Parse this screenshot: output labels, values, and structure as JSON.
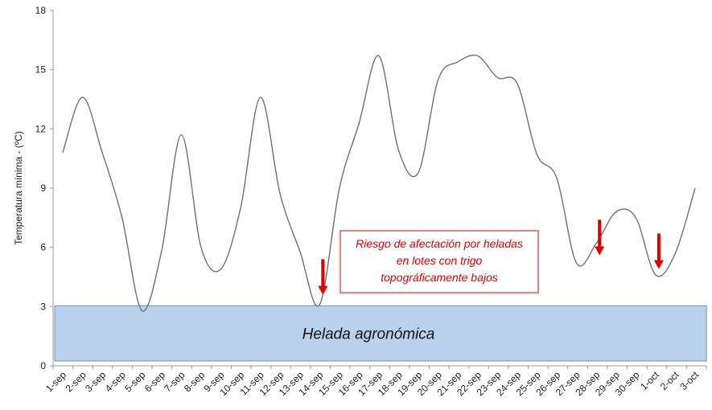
{
  "chart_data": {
    "type": "line",
    "title": "",
    "xlabel": "",
    "ylabel": "Temperatura mínima - (ºC)",
    "ylim": [
      0,
      18
    ],
    "yticks": [
      0,
      3,
      6,
      9,
      12,
      15,
      18
    ],
    "grid": false,
    "categories": [
      "1-sep",
      "2-sep",
      "3-sep",
      "4-sep",
      "5-sep",
      "6-sep",
      "7-sep",
      "8-sep",
      "9-sep",
      "10-sep",
      "11-sep",
      "12-sep",
      "13-sep",
      "14-sep",
      "15-sep",
      "16-sep",
      "17-sep",
      "18-sep",
      "19-sep",
      "20-sep",
      "21-sep",
      "22-sep",
      "23-sep",
      "24-sep",
      "25-sep",
      "26-sep",
      "27-sep",
      "28-sep",
      "29-sep",
      "30-sep",
      "1-oct",
      "2-oct",
      "3-oct"
    ],
    "series": [
      {
        "values": [
          10.8,
          13.6,
          10.8,
          7.5,
          2.8,
          5.8,
          11.7,
          6.0,
          4.9,
          8.0,
          13.6,
          8.7,
          5.8,
          3.1,
          9.0,
          12.3,
          15.7,
          10.9,
          9.8,
          14.5,
          15.4,
          15.7,
          14.6,
          14.3,
          10.7,
          9.5,
          5.2,
          6.2,
          7.8,
          7.5,
          4.6,
          5.7,
          9.0
        ],
        "color": "#707070"
      }
    ],
    "band": {
      "label": "Helada agronómica",
      "y_from": 0,
      "y_to": 3,
      "color": "#b9d1ea",
      "border": "#6f8fb3"
    },
    "annotation": {
      "lines": [
        "Riesgo de afectación por heladas",
        "en lotes con trigo",
        "topográficamente bajos"
      ],
      "color": "#e00000"
    },
    "arrows": [
      {
        "category": "14-sep",
        "from": 5.4,
        "to": 3.6
      },
      {
        "category": "28-sep",
        "from": 7.4,
        "to": 5.6
      },
      {
        "category": "1-oct",
        "from": 6.7,
        "to": 4.9
      }
    ],
    "arrow_color": "#e00000"
  }
}
